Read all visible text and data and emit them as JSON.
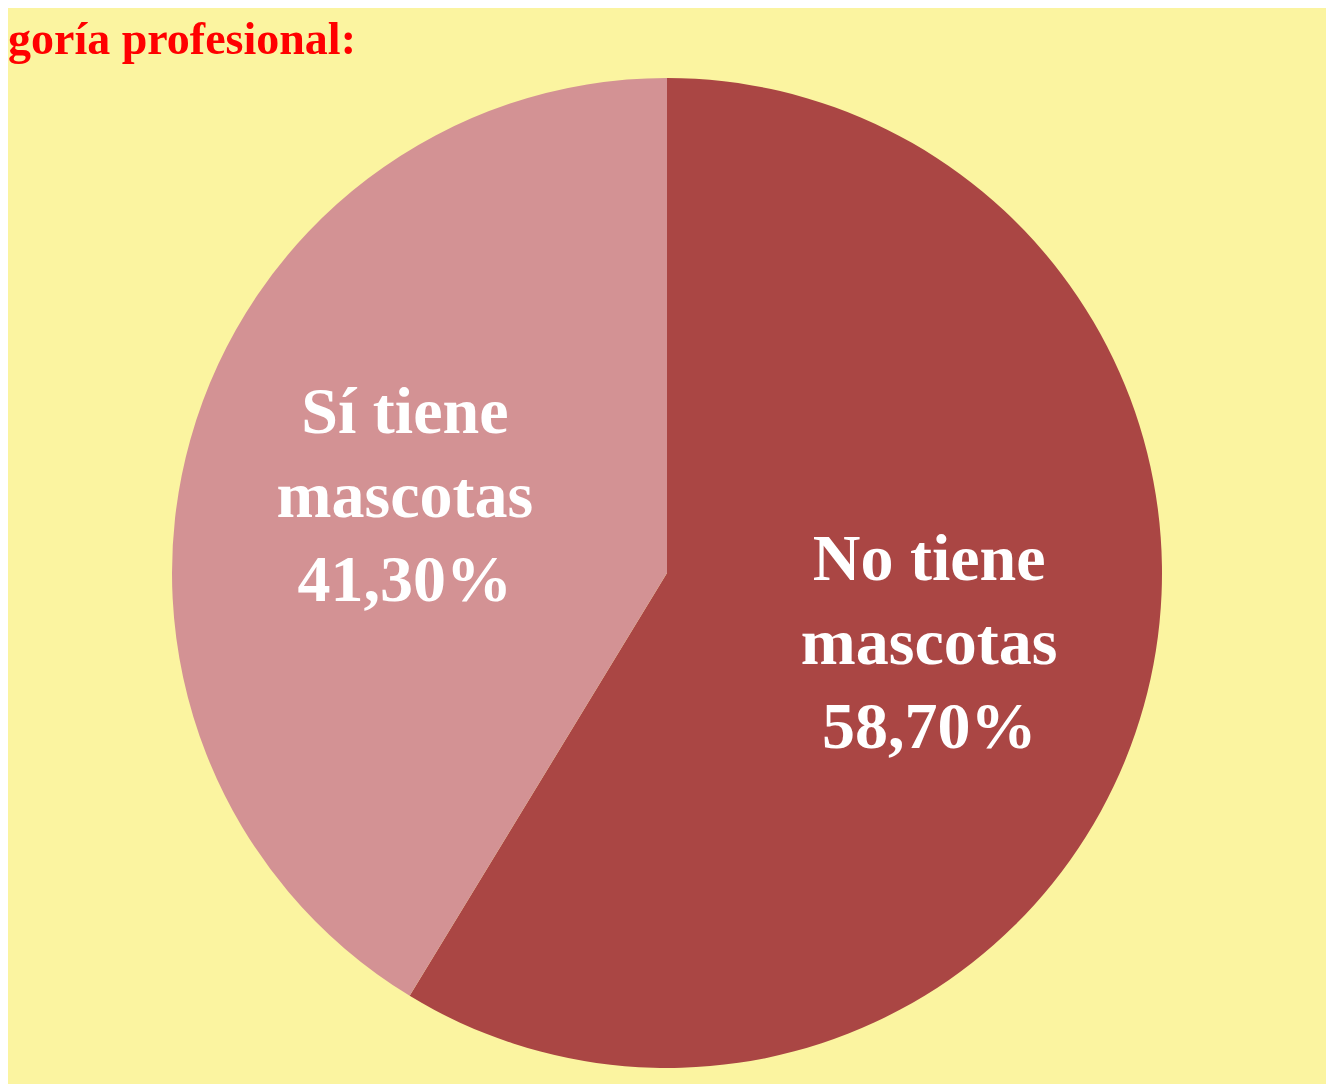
{
  "chart_data": {
    "type": "pie",
    "title": "goría profesional:",
    "categories": [
      "No tiene mascotas",
      "Sí tiene mascotas"
    ],
    "values": [
      58.7,
      41.3
    ],
    "value_labels": [
      "58,70%",
      "41,30%"
    ],
    "colors": [
      "#aa4644",
      "#d39294"
    ],
    "legend": false
  }
}
